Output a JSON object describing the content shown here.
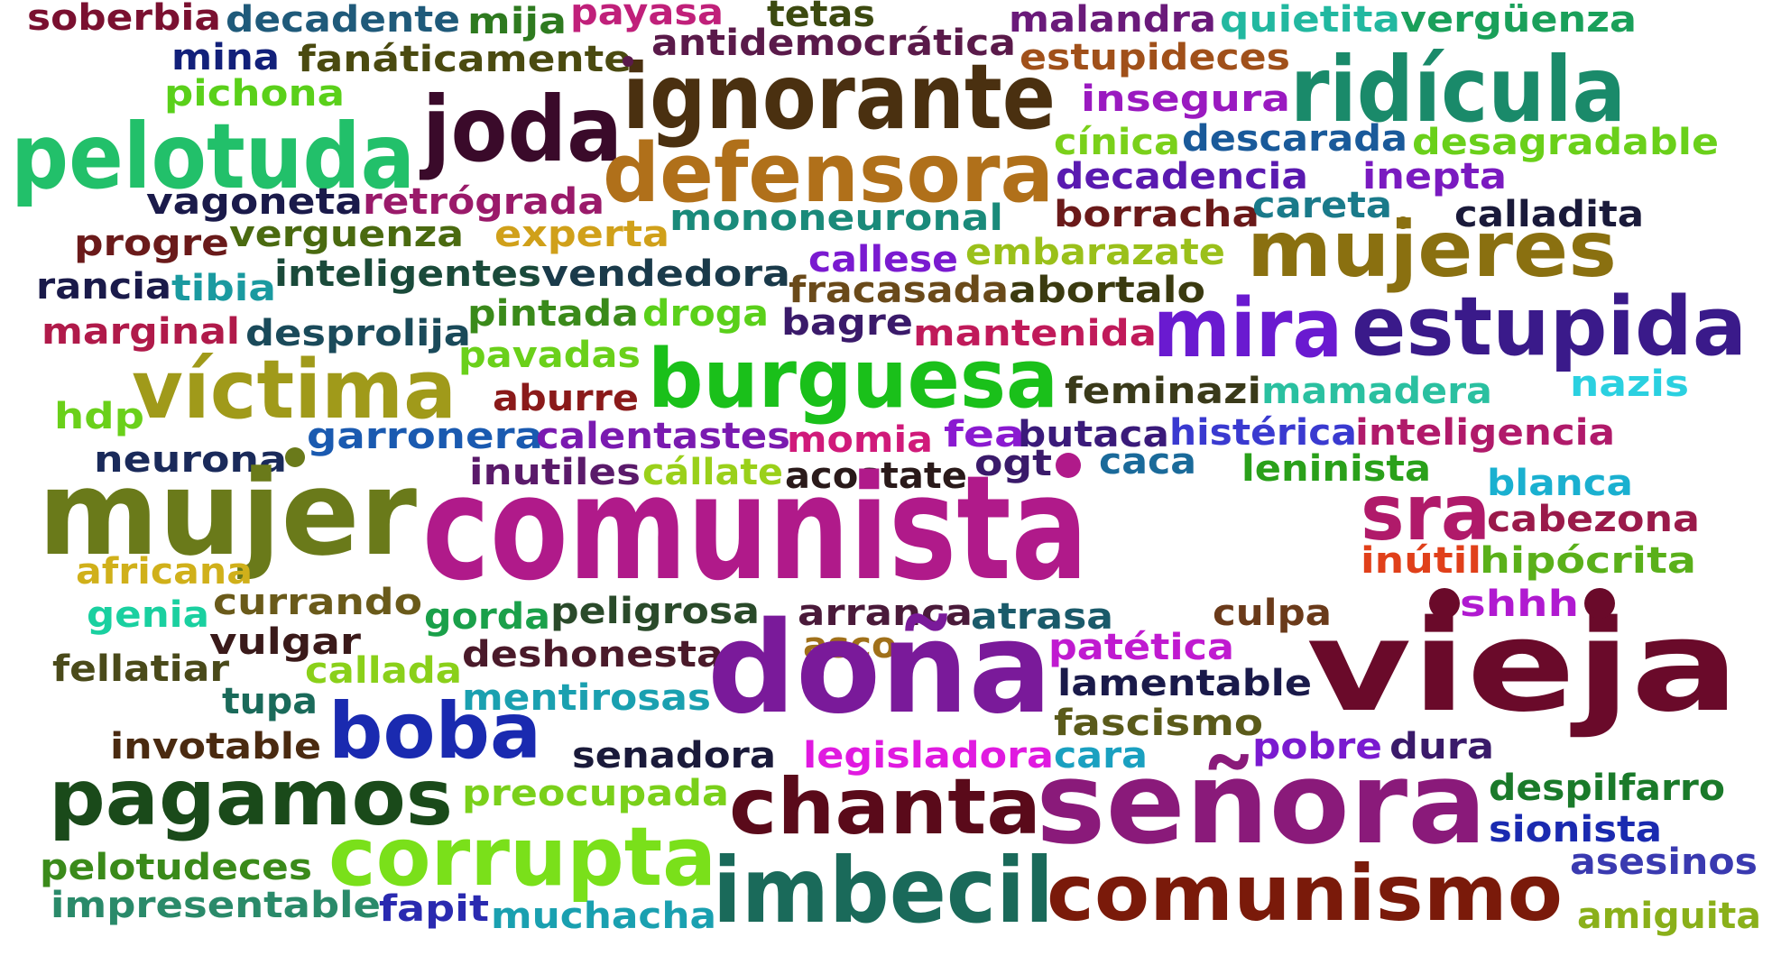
{
  "words": [
    {
      "text": "soberbia",
      "color": "#7a1030"
    },
    {
      "text": "decadente",
      "color": "#1f5a7a"
    },
    {
      "text": "mija",
      "color": "#2e7a1f"
    },
    {
      "text": "payasa",
      "color": "#c0207a"
    },
    {
      "text": "tetas",
      "color": "#3c4a10"
    },
    {
      "text": "malandra",
      "color": "#6a1a7a"
    },
    {
      "text": "quietita",
      "color": "#22b8a0"
    },
    {
      "text": "vergüenza",
      "color": "#1aa05a"
    },
    {
      "text": "mina",
      "color": "#12207a"
    },
    {
      "text": "fanáticamente",
      "color": "#4a4a10"
    },
    {
      "text": "antidemocrática",
      "color": "#5a1a4a"
    },
    {
      "text": "estupideces",
      "color": "#a0501a"
    },
    {
      "text": "pichona",
      "color": "#5ad01a"
    },
    {
      "text": "ignorante",
      "color": "#4a3010"
    },
    {
      "text": "ridícula",
      "color": "#1a8a6a"
    },
    {
      "text": "insegura",
      "color": "#9a1ac0"
    },
    {
      "text": "joda",
      "color": "#3a0a2a"
    },
    {
      "text": "pelotuda",
      "color": "#22c06a"
    },
    {
      "text": "cínica",
      "color": "#7ad01a"
    },
    {
      "text": "descarada",
      "color": "#1a5a9a"
    },
    {
      "text": "desagradable",
      "color": "#6ad01a"
    },
    {
      "text": "defensora",
      "color": "#b0701a"
    },
    {
      "text": "decadencia",
      "color": "#5a1ab0"
    },
    {
      "text": "inepta",
      "color": "#7a1ac0"
    },
    {
      "text": "vagoneta",
      "color": "#1a1a4a"
    },
    {
      "text": "retrógrada",
      "color": "#9a1a6a"
    },
    {
      "text": "borracha",
      "color": "#6a1a1a"
    },
    {
      "text": "careta",
      "color": "#1a7a8a"
    },
    {
      "text": "calladita",
      "color": "#1a1a3a"
    },
    {
      "text": "mononeuronal",
      "color": "#1a8a7a"
    },
    {
      "text": "progre",
      "color": "#6a1a1a"
    },
    {
      "text": "verguenza",
      "color": "#4a6a10"
    },
    {
      "text": "experta",
      "color": "#d0a01a"
    },
    {
      "text": "mujeres",
      "color": "#8a7010"
    },
    {
      "text": "callese",
      "color": "#7a1ad0"
    },
    {
      "text": "embarazate",
      "color": "#9ac01a"
    },
    {
      "text": "rancia",
      "color": "#1a1a4a"
    },
    {
      "text": "tibia",
      "color": "#1a9aa0"
    },
    {
      "text": "inteligentes",
      "color": "#1a4a3a"
    },
    {
      "text": "vendedora",
      "color": "#1a3a4a"
    },
    {
      "text": "fracasada",
      "color": "#6a4a1a"
    },
    {
      "text": "abortalo",
      "color": "#3a3a10"
    },
    {
      "text": "pintada",
      "color": "#3a8a1a"
    },
    {
      "text": "droga",
      "color": "#5ad01a"
    },
    {
      "text": "bagre",
      "color": "#3a1a6a"
    },
    {
      "text": "mira",
      "color": "#6a1ad0"
    },
    {
      "text": "estupida",
      "color": "#3a1a8a"
    },
    {
      "text": "marginal",
      "color": "#b01a4a"
    },
    {
      "text": "desprolija",
      "color": "#1a4a5a"
    },
    {
      "text": "mantenida",
      "color": "#c01a5a"
    },
    {
      "text": "pavadas",
      "color": "#6ad01a"
    },
    {
      "text": "víctima",
      "color": "#a09a1a"
    },
    {
      "text": "burguesa",
      "color": "#1ac01a"
    },
    {
      "text": "feminazi",
      "color": "#3a3a1a"
    },
    {
      "text": "mamadera",
      "color": "#2ac0a0"
    },
    {
      "text": "nazis",
      "color": "#2ad0e0"
    },
    {
      "text": "hdp",
      "color": "#6ad01a"
    },
    {
      "text": "aburre",
      "color": "#8a1a1a"
    },
    {
      "text": "garronera",
      "color": "#1a5ab0"
    },
    {
      "text": "calentastes",
      "color": "#7a1ab0"
    },
    {
      "text": "momia",
      "color": "#d01a7a"
    },
    {
      "text": "fea",
      "color": "#8a1ad0"
    },
    {
      "text": "butaca",
      "color": "#3a1a7a"
    },
    {
      "text": "histérica",
      "color": "#3a3ad0"
    },
    {
      "text": "inteligencia",
      "color": "#b01a6a"
    },
    {
      "text": "neurona",
      "color": "#1a2a5a"
    },
    {
      "text": "inutiles",
      "color": "#5a1a6a"
    },
    {
      "text": "cállate",
      "color": "#9ad01a"
    },
    {
      "text": "acostate",
      "color": "#2a1a1a"
    },
    {
      "text": "ogt",
      "color": "#3a1a6a"
    },
    {
      "text": "caca",
      "color": "#1a6a9a"
    },
    {
      "text": "leninista",
      "color": "#2aa01a"
    },
    {
      "text": "blanca",
      "color": "#1ab0d0"
    },
    {
      "text": "mujer",
      "color": "#6a7a1a"
    },
    {
      "text": "comunista",
      "color": "#b01a8a"
    },
    {
      "text": "sra",
      "color": "#b01a6a"
    },
    {
      "text": "cabezona",
      "color": "#9a1a4a"
    },
    {
      "text": "africana",
      "color": "#d0b01a"
    },
    {
      "text": "inútil",
      "color": "#e0401a"
    },
    {
      "text": "hipócrita",
      "color": "#5ab01a"
    },
    {
      "text": "currando",
      "color": "#6a5a1a"
    },
    {
      "text": "genia",
      "color": "#1ad0a0"
    },
    {
      "text": "gorda",
      "color": "#1aa04a"
    },
    {
      "text": "peligrosa",
      "color": "#2a4a2a"
    },
    {
      "text": "arranca",
      "color": "#4a1a3a"
    },
    {
      "text": "atrasa",
      "color": "#1a5a6a"
    },
    {
      "text": "culpa",
      "color": "#6a3a1a"
    },
    {
      "text": "shhh",
      "color": "#b01ad0"
    },
    {
      "text": "vulgar",
      "color": "#3a1a1a"
    },
    {
      "text": "deshonesta",
      "color": "#4a1a2a"
    },
    {
      "text": "asco",
      "color": "#a0701a"
    },
    {
      "text": "patética",
      "color": "#c01ad0"
    },
    {
      "text": "vieja",
      "color": "#6a0a2a"
    },
    {
      "text": "fellatiar",
      "color": "#4a4a1a"
    },
    {
      "text": "callada",
      "color": "#8ad01a"
    },
    {
      "text": "doña",
      "color": "#7a1a9a"
    },
    {
      "text": "lamentable",
      "color": "#1a1a4a"
    },
    {
      "text": "tupa",
      "color": "#1a6a5a"
    },
    {
      "text": "mentirosas",
      "color": "#1aa0b0"
    },
    {
      "text": "fascismo",
      "color": "#5a5a1a"
    },
    {
      "text": "boba",
      "color": "#1a2ab0"
    },
    {
      "text": "invotable",
      "color": "#4a2a10"
    },
    {
      "text": "senadora",
      "color": "#1a1a3a"
    },
    {
      "text": "legisladora",
      "color": "#e01ae0"
    },
    {
      "text": "cara",
      "color": "#1aa0c0"
    },
    {
      "text": "pobre",
      "color": "#7a1ad0"
    },
    {
      "text": "dura",
      "color": "#3a1a6a"
    },
    {
      "text": "pagamos",
      "color": "#1a4a1a"
    },
    {
      "text": "preocupada",
      "color": "#7ad01a"
    },
    {
      "text": "chanta",
      "color": "#5a0a1a"
    },
    {
      "text": "señora",
      "color": "#8a1a7a"
    },
    {
      "text": "despilfarro",
      "color": "#1a7a2a"
    },
    {
      "text": "corrupta",
      "color": "#7ae01a"
    },
    {
      "text": "sionista",
      "color": "#1a2ab0"
    },
    {
      "text": "pelotudeces",
      "color": "#3a8a1a"
    },
    {
      "text": "imbecil",
      "color": "#1a6a5a"
    },
    {
      "text": "comunismo",
      "color": "#7a1a0a"
    },
    {
      "text": "asesinos",
      "color": "#3a3ab0"
    },
    {
      "text": "impresentable",
      "color": "#2a8a6a"
    },
    {
      "text": "fapit",
      "color": "#2a2ab0"
    },
    {
      "text": "muchacha",
      "color": "#1aa0b0"
    },
    {
      "text": "amiguita",
      "color": "#8ab01a"
    }
  ]
}
